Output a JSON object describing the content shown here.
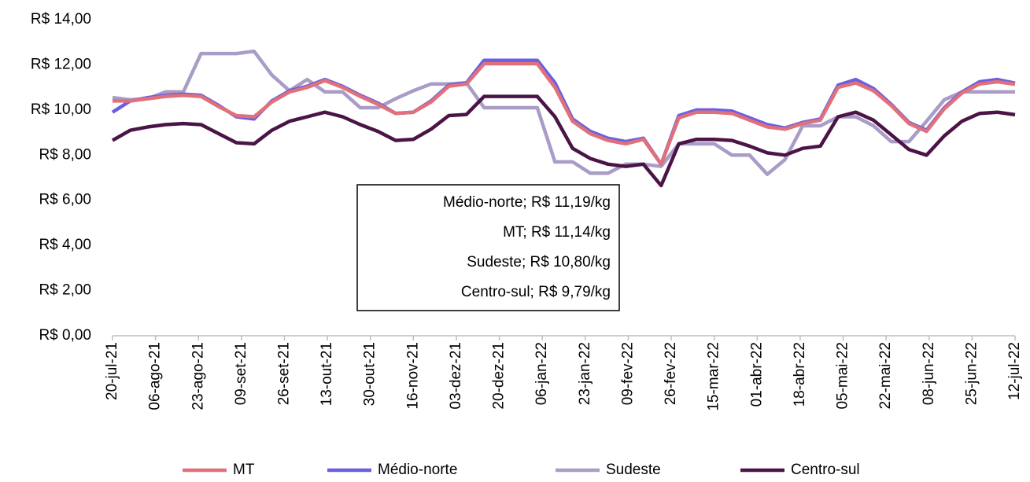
{
  "chart_data": {
    "type": "line",
    "x": [
      "20-jul-21",
      "27-jul-21",
      "03-ago-21",
      "10-ago-21",
      "17-ago-21",
      "24-ago-21",
      "31-ago-21",
      "07-set-21",
      "14-set-21",
      "21-set-21",
      "28-set-21",
      "05-out-21",
      "12-out-21",
      "19-out-21",
      "26-out-21",
      "02-nov-21",
      "09-nov-21",
      "16-nov-21",
      "23-nov-21",
      "30-nov-21",
      "07-dez-21",
      "14-dez-21",
      "21-dez-21",
      "28-dez-21",
      "04-jan-22",
      "11-jan-22",
      "18-jan-22",
      "25-jan-22",
      "01-fev-22",
      "08-fev-22",
      "15-fev-22",
      "22-fev-22",
      "01-mar-22",
      "08-mar-22",
      "15-mar-22",
      "22-mar-22",
      "29-mar-22",
      "05-abr-22",
      "12-abr-22",
      "19-abr-22",
      "26-abr-22",
      "03-mai-22",
      "10-mai-22",
      "17-mai-22",
      "24-mai-22",
      "31-mai-22",
      "07-jun-22",
      "14-jun-22",
      "21-jun-22",
      "28-jun-22",
      "05-jul-22",
      "12-jul-22"
    ],
    "xlim": [
      "20-jul-21",
      "12-jul-22"
    ],
    "xticks": [
      "20-jul-21",
      "06-ago-21",
      "23-ago-21",
      "09-set-21",
      "26-set-21",
      "13-out-21",
      "30-out-21",
      "16-nov-21",
      "03-dez-21",
      "20-dez-21",
      "06-jan-22",
      "23-jan-22",
      "09-fev-22",
      "26-fev-22",
      "15-mar-22",
      "01-abr-22",
      "18-abr-22",
      "05-mai-22",
      "22-mai-22",
      "08-jun-22",
      "25-jun-22",
      "12-jul-22"
    ],
    "ylim": [
      0,
      14
    ],
    "yticks": [
      {
        "value": 0,
        "label": "R$ 0,00"
      },
      {
        "value": 2,
        "label": "R$ 2,00"
      },
      {
        "value": 4,
        "label": "R$ 4,00"
      },
      {
        "value": 6,
        "label": "R$ 6,00"
      },
      {
        "value": 8,
        "label": "R$ 8,00"
      },
      {
        "value": 10,
        "label": "R$ 10,00"
      },
      {
        "value": 12,
        "label": "R$ 12,00"
      },
      {
        "value": 14,
        "label": "R$ 14,00"
      }
    ],
    "grid": false,
    "legend": "bottom",
    "annotation": [
      "Médio-norte; R$ 11,19/kg",
      "MT; R$ 11,14/kg",
      "Sudeste; R$ 10,80/kg",
      "Centro-sul; R$ 9,79/kg"
    ],
    "series": [
      {
        "name": "MT",
        "color": "#e0707a",
        "values": [
          10.4,
          10.4,
          10.5,
          10.6,
          10.65,
          10.6,
          10.15,
          9.75,
          9.7,
          10.35,
          10.8,
          11.0,
          11.3,
          11.0,
          10.6,
          10.25,
          9.85,
          9.9,
          10.35,
          11.05,
          11.15,
          12.05,
          12.05,
          12.05,
          12.05,
          11.0,
          9.5,
          8.95,
          8.65,
          8.5,
          8.7,
          7.6,
          9.65,
          9.9,
          9.9,
          9.85,
          9.55,
          9.25,
          9.15,
          9.4,
          9.55,
          11.0,
          11.2,
          10.85,
          10.2,
          9.4,
          9.05,
          10.05,
          10.75,
          11.15,
          11.25,
          11.14
        ]
      },
      {
        "name": "Médio-norte",
        "color": "#6b5fe0",
        "values": [
          9.9,
          10.4,
          10.55,
          10.65,
          10.7,
          10.65,
          10.2,
          9.7,
          9.6,
          10.4,
          10.85,
          11.05,
          11.35,
          11.05,
          10.65,
          10.3,
          9.85,
          9.9,
          10.4,
          11.1,
          11.2,
          12.2,
          12.2,
          12.2,
          12.2,
          11.2,
          9.6,
          9.05,
          8.75,
          8.6,
          8.75,
          7.6,
          9.75,
          10.0,
          10.0,
          9.95,
          9.65,
          9.35,
          9.2,
          9.45,
          9.6,
          11.1,
          11.35,
          10.95,
          10.25,
          9.45,
          9.1,
          10.1,
          10.8,
          11.25,
          11.35,
          11.19
        ]
      },
      {
        "name": "Sudeste",
        "color": "#a99cc6",
        "values": [
          10.55,
          10.45,
          10.5,
          10.8,
          10.8,
          12.5,
          12.5,
          12.5,
          12.6,
          11.55,
          10.85,
          11.35,
          10.8,
          10.8,
          10.1,
          10.1,
          10.5,
          10.85,
          11.15,
          11.15,
          11.2,
          10.1,
          10.1,
          10.1,
          10.1,
          7.7,
          7.7,
          7.2,
          7.2,
          7.6,
          7.6,
          7.5,
          8.5,
          8.5,
          8.5,
          8.0,
          8.0,
          7.15,
          7.8,
          9.3,
          9.3,
          9.7,
          9.7,
          9.3,
          8.6,
          8.6,
          9.5,
          10.45,
          10.8,
          10.8,
          10.8,
          10.8
        ]
      },
      {
        "name": "Centro-sul",
        "color": "#4b1446",
        "values": [
          8.65,
          9.1,
          9.25,
          9.35,
          9.4,
          9.35,
          8.95,
          8.55,
          8.5,
          9.1,
          9.5,
          9.7,
          9.9,
          9.7,
          9.35,
          9.05,
          8.65,
          8.7,
          9.15,
          9.75,
          9.8,
          10.6,
          10.6,
          10.6,
          10.6,
          9.7,
          8.3,
          7.85,
          7.6,
          7.5,
          7.6,
          6.65,
          8.5,
          8.7,
          8.7,
          8.65,
          8.4,
          8.1,
          8.0,
          8.3,
          8.4,
          9.7,
          9.9,
          9.55,
          8.9,
          8.25,
          8.0,
          8.85,
          9.5,
          9.85,
          9.9,
          9.79
        ]
      }
    ]
  }
}
